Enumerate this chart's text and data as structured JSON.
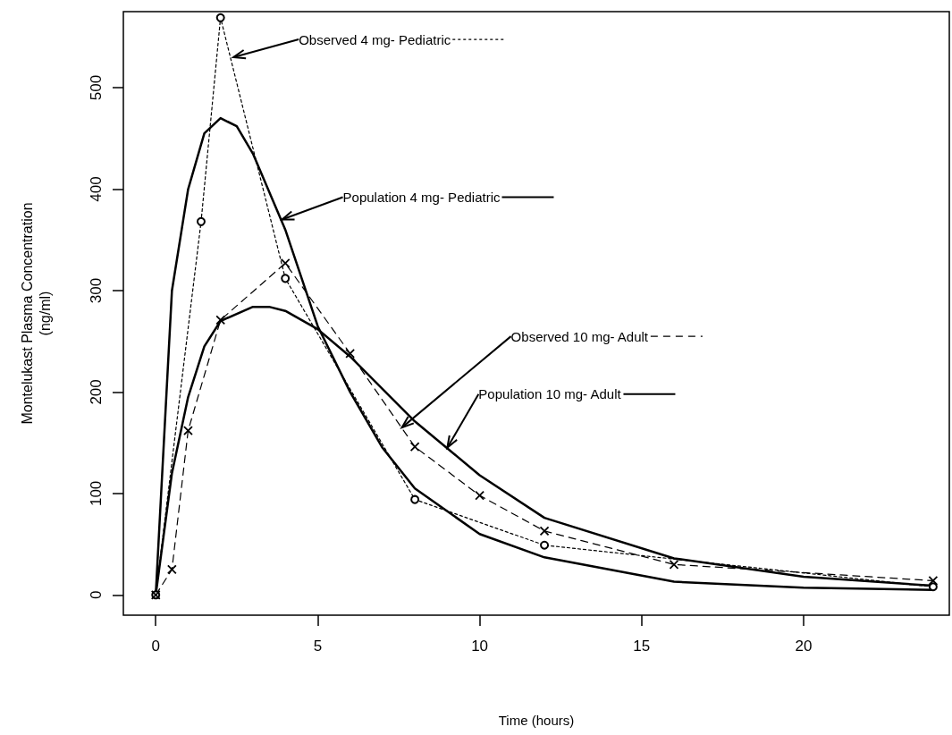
{
  "chart_data": {
    "type": "line",
    "xlabel": "Time (hours)",
    "ylabel": "Montelukast Plasma Concentration\n(ng/ml)",
    "xlim": [
      -1,
      24.5
    ],
    "ylim": [
      -20,
      575
    ],
    "xticks": [
      0,
      5,
      10,
      15,
      20
    ],
    "yticks": [
      0,
      100,
      200,
      300,
      400,
      500
    ],
    "series": [
      {
        "color": "#000000",
        "marker": "circle",
        "line_style": "dotted",
        "x": [
          0,
          1.4,
          2,
          4,
          8,
          12,
          24
        ],
        "values": [
          0,
          368,
          569,
          312,
          94,
          49,
          8
        ]
      },
      {
        "color": "#000000",
        "marker": "none",
        "line_style": "solid",
        "x": [
          0,
          0.25,
          0.5,
          1,
          1.5,
          2,
          2.5,
          3,
          4,
          5,
          6,
          7,
          8,
          10,
          12,
          16,
          20,
          24
        ],
        "values": [
          0,
          150,
          300,
          400,
          455,
          470,
          462,
          435,
          360,
          265,
          200,
          145,
          105,
          60,
          37,
          13,
          7,
          5
        ]
      },
      {
        "color": "#000000",
        "marker": "cross",
        "line_style": "dashed",
        "x": [
          0,
          0.5,
          1,
          2,
          4,
          6,
          8,
          10,
          12,
          16,
          24
        ],
        "values": [
          0,
          25,
          162,
          271,
          327,
          238,
          146,
          98,
          63,
          30,
          14
        ]
      },
      {
        "color": "#000000",
        "marker": "none",
        "line_style": "solid",
        "x": [
          0,
          0.5,
          1,
          1.5,
          2,
          3,
          3.5,
          4,
          5,
          6,
          8,
          10,
          12,
          16,
          20,
          24
        ],
        "values": [
          0,
          120,
          195,
          245,
          270,
          284,
          284,
          280,
          262,
          235,
          171,
          118,
          76,
          36,
          18,
          9
        ]
      }
    ],
    "annotations": [
      {
        "text": "Observed 4 mg- Pediatric",
        "x": 2.4,
        "y": 530
      },
      {
        "text": "Population 4 mg- Pediatric",
        "x": 3.9,
        "y": 370
      },
      {
        "text": "Observed 10 mg- Adult",
        "x": 7.6,
        "y": 165
      },
      {
        "text": "Population 10 mg- Adult",
        "x": 9,
        "y": 145
      }
    ]
  }
}
